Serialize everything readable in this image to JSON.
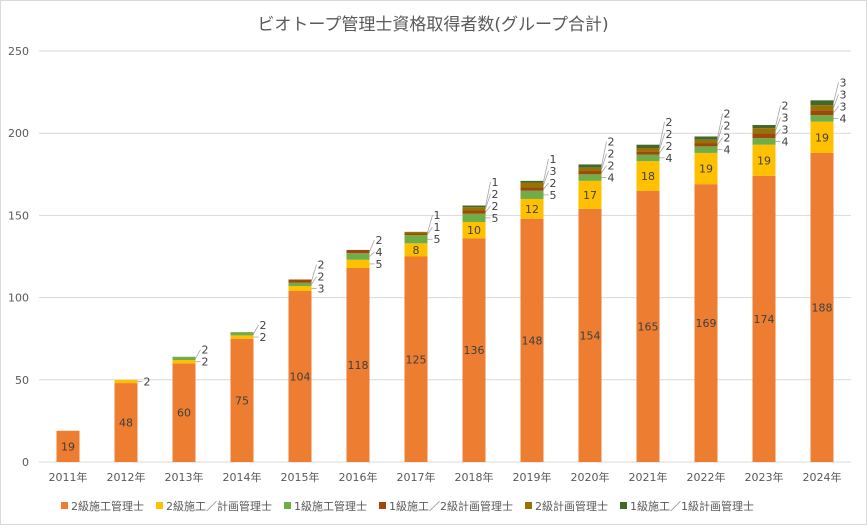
{
  "chart_data": {
    "type": "bar",
    "stacked": true,
    "title": "ビオトープ管理士資格取得者数(グループ合計)",
    "xlabel": "",
    "ylabel": "",
    "ylim": [
      0,
      250
    ],
    "yticks": [
      0,
      50,
      100,
      150,
      200,
      250
    ],
    "grid": true,
    "legend": "bottom",
    "categories": [
      "2011年",
      "2012年",
      "2013年",
      "2014年",
      "2015年",
      "2016年",
      "2017年",
      "2018年",
      "2019年",
      "2020年",
      "2021年",
      "2022年",
      "2023年",
      "2024年"
    ],
    "series": [
      {
        "name": "2級施工管理士",
        "color": "#ED7D31",
        "values": [
          19,
          48,
          60,
          75,
          104,
          118,
          125,
          136,
          148,
          154,
          165,
          169,
          174,
          188
        ]
      },
      {
        "name": "2級施工／計画管理士",
        "color": "#FFC000",
        "values": [
          0,
          2,
          2,
          2,
          3,
          5,
          8,
          10,
          12,
          17,
          18,
          19,
          19,
          19
        ]
      },
      {
        "name": "1級施工管理士",
        "color": "#70AD47",
        "values": [
          0,
          0,
          2,
          2,
          2,
          4,
          5,
          5,
          5,
          4,
          4,
          4,
          4,
          4
        ]
      },
      {
        "name": "1級施工／2級計画管理士",
        "color": "#9E480E",
        "values": [
          0,
          0,
          0,
          0,
          2,
          2,
          1,
          2,
          2,
          2,
          2,
          2,
          3,
          3
        ]
      },
      {
        "name": "2級計画管理士",
        "color": "#997300",
        "values": [
          0,
          0,
          0,
          0,
          0,
          0,
          1,
          2,
          3,
          2,
          2,
          2,
          3,
          3
        ]
      },
      {
        "name": "1級施工／1級計画管理士",
        "color": "#43682B",
        "values": [
          0,
          0,
          0,
          0,
          0,
          0,
          0,
          1,
          1,
          2,
          2,
          2,
          2,
          3
        ]
      }
    ]
  }
}
